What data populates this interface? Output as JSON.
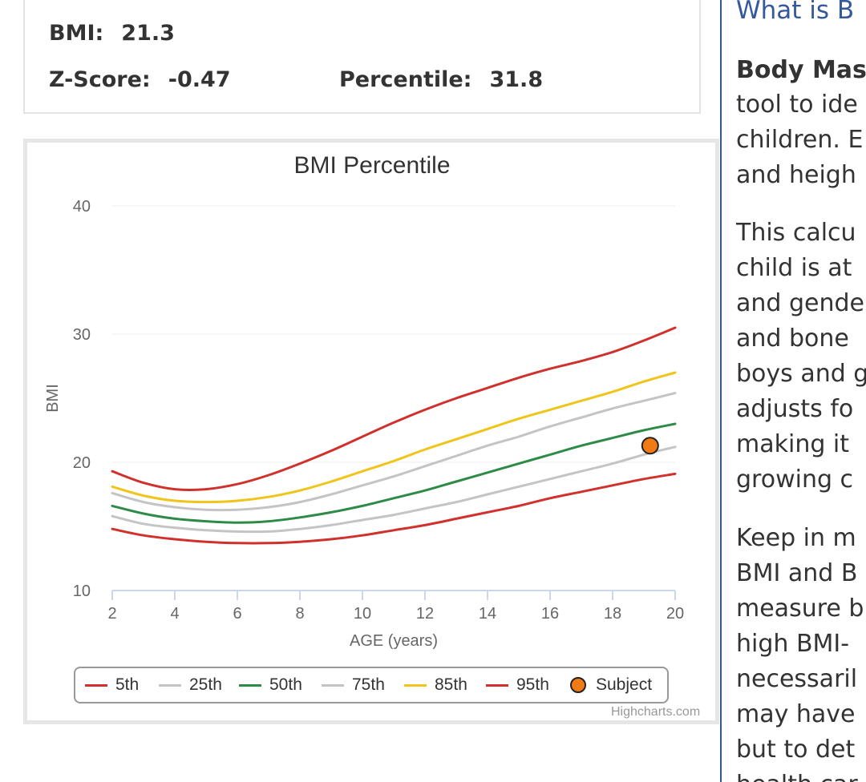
{
  "results": {
    "bmi_label": "BMI:",
    "bmi_value": "21.3",
    "zscore_label": "Z-Score:",
    "zscore_value": "-0.47",
    "percentile_label": "Percentile:",
    "percentile_value": "31.8"
  },
  "sidebar": {
    "heading": "What is B",
    "lines": [
      "Body Mas",
      "tool to ide",
      "children. E",
      "and heigh",
      "This calcu",
      "child is at",
      "and gende",
      "and bone",
      "boys and g",
      "adjusts fo",
      "making it",
      "growing c",
      "Keep in m",
      "BMI and B",
      "measure b",
      "high BMI-",
      "necessaril",
      "may have",
      "but to det",
      "health car"
    ]
  },
  "chart_data": {
    "type": "line",
    "title": "BMI Percentile",
    "xlabel": "AGE (years)",
    "ylabel": "BMI",
    "xlim": [
      2,
      20
    ],
    "ylim": [
      10,
      40
    ],
    "x_ticks": [
      "2",
      "4",
      "6",
      "8",
      "10",
      "12",
      "14",
      "16",
      "18",
      "20"
    ],
    "y_ticks": [
      "10",
      "20",
      "30",
      "40"
    ],
    "grid": true,
    "legend_position": "bottom",
    "x": [
      2,
      3,
      4,
      5,
      6,
      7,
      8,
      9,
      10,
      11,
      12,
      13,
      14,
      15,
      16,
      17,
      18,
      19,
      20
    ],
    "series": [
      {
        "name": "5th",
        "color": "#d0312d",
        "values": [
          14.8,
          14.3,
          14.0,
          13.8,
          13.7,
          13.7,
          13.8,
          14.0,
          14.3,
          14.7,
          15.1,
          15.6,
          16.1,
          16.6,
          17.2,
          17.7,
          18.2,
          18.7,
          19.1
        ]
      },
      {
        "name": "25th",
        "color": "#c4c4c4",
        "values": [
          15.8,
          15.2,
          14.9,
          14.7,
          14.6,
          14.6,
          14.8,
          15.1,
          15.5,
          15.9,
          16.4,
          16.9,
          17.5,
          18.1,
          18.7,
          19.3,
          19.9,
          20.6,
          21.2
        ]
      },
      {
        "name": "50th",
        "color": "#2e8b47",
        "values": [
          16.6,
          16.0,
          15.6,
          15.4,
          15.3,
          15.4,
          15.7,
          16.1,
          16.6,
          17.2,
          17.8,
          18.5,
          19.2,
          19.9,
          20.6,
          21.3,
          21.9,
          22.5,
          23.0
        ]
      },
      {
        "name": "75th",
        "color": "#c4c4c4",
        "values": [
          17.6,
          16.9,
          16.5,
          16.3,
          16.3,
          16.5,
          16.9,
          17.5,
          18.2,
          18.9,
          19.7,
          20.5,
          21.3,
          22.0,
          22.8,
          23.5,
          24.2,
          24.8,
          25.4
        ]
      },
      {
        "name": "85th",
        "color": "#f0c419",
        "values": [
          18.1,
          17.4,
          17.0,
          16.9,
          17.0,
          17.3,
          17.8,
          18.5,
          19.3,
          20.1,
          21.0,
          21.8,
          22.6,
          23.4,
          24.1,
          24.8,
          25.5,
          26.3,
          27.0
        ]
      },
      {
        "name": "95th",
        "color": "#d0312d",
        "values": [
          19.3,
          18.4,
          17.9,
          17.9,
          18.3,
          19.0,
          19.9,
          20.9,
          22.0,
          23.1,
          24.1,
          25.0,
          25.8,
          26.6,
          27.3,
          27.9,
          28.6,
          29.5,
          30.5
        ]
      }
    ],
    "subject": {
      "name": "Subject",
      "x": 19.2,
      "y": 21.3,
      "color": "#f07a14"
    },
    "credits": "Highcharts.com"
  }
}
